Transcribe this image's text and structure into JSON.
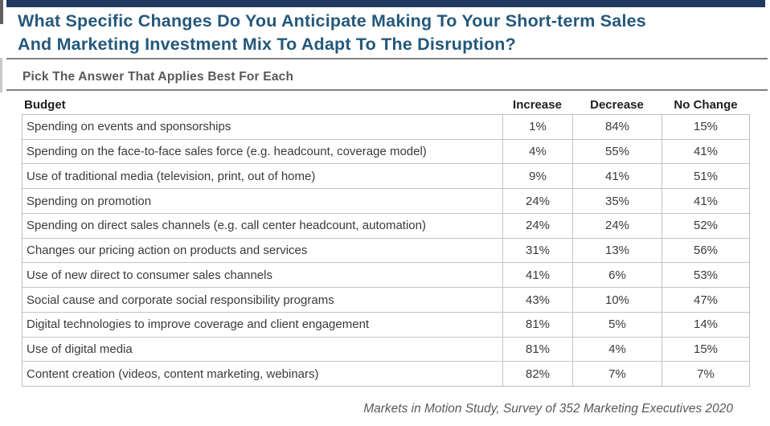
{
  "title_lines": [
    "What Specific Changes Do You Anticipate Making To Your Short-term Sales",
    "And Marketing Investment Mix To Adapt To The Disruption?"
  ],
  "subtitle": "Pick The Answer That Applies Best For Each",
  "footer": "Markets in Motion Study, Survey of 352 Marketing Executives 2020",
  "colors": {
    "top_bar": "#1f3a5e",
    "title_text": "#24587c",
    "divider": "#7f7f7f",
    "table_border": "#c4c4c4",
    "body_text": "#3a3a3a",
    "muted_text": "#595959"
  },
  "chart_data": {
    "type": "table",
    "title": "What Specific Changes Do You Anticipate Making To Your Short-term Sales And Marketing Investment Mix To Adapt To The Disruption?",
    "subtitle": "Pick The Answer That Applies Best For Each",
    "source": "Markets in Motion Study, Survey of 352 Marketing Executives 2020",
    "columns": [
      "Budget",
      "Increase",
      "Decrease",
      "No Change"
    ],
    "rows": [
      {
        "budget": "Spending on events and sponsorships",
        "increase": "1%",
        "decrease": "84%",
        "no_change": "15%"
      },
      {
        "budget": "Spending on the face-to-face sales force (e.g. headcount, coverage model)",
        "increase": "4%",
        "decrease": "55%",
        "no_change": "41%"
      },
      {
        "budget": "Use of traditional media (television, print, out of home)",
        "increase": "9%",
        "decrease": "41%",
        "no_change": "51%"
      },
      {
        "budget": "Spending on promotion",
        "increase": "24%",
        "decrease": "35%",
        "no_change": "41%"
      },
      {
        "budget": "Spending on direct sales channels (e.g. call center headcount, automation)",
        "increase": "24%",
        "decrease": "24%",
        "no_change": "52%"
      },
      {
        "budget": "Changes our pricing action on products and services",
        "increase": "31%",
        "decrease": "13%",
        "no_change": "56%"
      },
      {
        "budget": "Use of new direct to consumer sales channels",
        "increase": "41%",
        "decrease": "6%",
        "no_change": "53%"
      },
      {
        "budget": "Social cause and corporate social responsibility programs",
        "increase": "43%",
        "decrease": "10%",
        "no_change": "47%"
      },
      {
        "budget": "Digital technologies to improve coverage and client engagement",
        "increase": "81%",
        "decrease": "5%",
        "no_change": "14%"
      },
      {
        "budget": "Use of digital media",
        "increase": "81%",
        "decrease": "4%",
        "no_change": "15%"
      },
      {
        "budget": "Content creation (videos, content marketing, webinars)",
        "increase": "82%",
        "decrease": "7%",
        "no_change": "7%"
      }
    ]
  }
}
